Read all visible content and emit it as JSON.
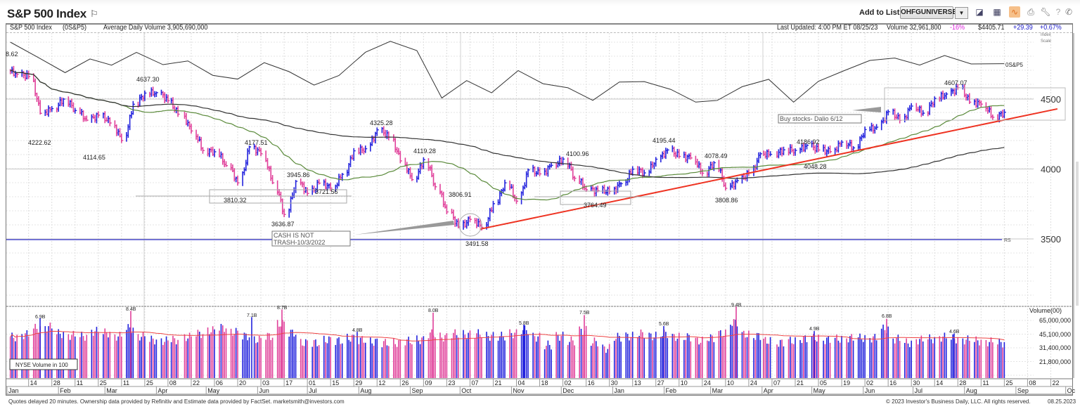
{
  "header": {
    "title": "S&P 500 Index",
    "add_to_list_label": "Add to List:",
    "list_selected": "OHFGUNIVERSE",
    "icons": [
      "chart-icon",
      "layout-grid-icon",
      "orange-chart-icon",
      "print-icon",
      "wrench-icon",
      "help-icon",
      "phone-icon"
    ]
  },
  "info": {
    "name": "S&P 500 Index",
    "symbol": "(0S&P5)",
    "avg_volume": "Average Daily Volume 3,905,690,000",
    "last_updated": "Last Updated: 4:00 PM ET 08/25/23",
    "volume": "Volume 32,961,800",
    "volume_change": "-16%",
    "price": "$4405.71",
    "change": "+29.39",
    "change_pct": "+0.67%",
    "index_scale_1": "Index",
    "index_scale_2": "Scale"
  },
  "colors": {
    "up": "#2222dd",
    "down": "#e0409a",
    "ma50": "#5a8a3a",
    "ma200": "#333333",
    "trend": "#ee3322",
    "rs": "#333333",
    "rs_baseline": "#3333cc",
    "vol_avg": "#ee4444",
    "neg": "#dd22dd",
    "pos": "#2222cc"
  },
  "chart_data": {
    "type": "ohlc",
    "y_axis": {
      "ticks": [
        4500,
        4000,
        3500
      ],
      "range": [
        3500,
        4700
      ]
    },
    "volume_axis": {
      "title": "Volume(00)",
      "ticks": [
        "65,000,000",
        "45,100,000",
        "31,400,000",
        "21,800,000"
      ],
      "scale": "log"
    },
    "rs_label": "0S&P5",
    "rs_baseline_label": "RS",
    "volume_legend": "NYSE Volume in 100",
    "weekly": {
      "dates": [
        "2022-01-07",
        "2022-01-14",
        "2022-01-21",
        "2022-01-28",
        "2022-02-04",
        "2022-02-11",
        "2022-02-18",
        "2022-02-25",
        "2022-03-04",
        "2022-03-11",
        "2022-03-18",
        "2022-03-25",
        "2022-04-01",
        "2022-04-08",
        "2022-04-14",
        "2022-04-22",
        "2022-04-29",
        "2022-05-06",
        "2022-05-13",
        "2022-05-20",
        "2022-05-27",
        "2022-06-03",
        "2022-06-10",
        "2022-06-17",
        "2022-06-24",
        "2022-07-01",
        "2022-07-08",
        "2022-07-15",
        "2022-07-22",
        "2022-07-29",
        "2022-08-05",
        "2022-08-12",
        "2022-08-19",
        "2022-08-26",
        "2022-09-02",
        "2022-09-09",
        "2022-09-16",
        "2022-09-23",
        "2022-09-30",
        "2022-10-07",
        "2022-10-14",
        "2022-10-21",
        "2022-10-28",
        "2022-11-04",
        "2022-11-11",
        "2022-11-18",
        "2022-11-25",
        "2022-12-02",
        "2022-12-09",
        "2022-12-16",
        "2022-12-23",
        "2022-12-30",
        "2023-01-06",
        "2023-01-13",
        "2023-01-20",
        "2023-01-27",
        "2023-02-03",
        "2023-02-10",
        "2023-02-17",
        "2023-02-24",
        "2023-03-03",
        "2023-03-10",
        "2023-03-17",
        "2023-03-24",
        "2023-03-31",
        "2023-04-06",
        "2023-04-14",
        "2023-04-21",
        "2023-04-28",
        "2023-05-05",
        "2023-05-12",
        "2023-05-19",
        "2023-05-26",
        "2023-06-02",
        "2023-06-09",
        "2023-06-16",
        "2023-06-23",
        "2023-06-30",
        "2023-07-07",
        "2023-07-14",
        "2023-07-21",
        "2023-07-28",
        "2023-08-04",
        "2023-08-11",
        "2023-08-18",
        "2023-08-25"
      ],
      "close": [
        4677,
        4662,
        4398,
        4432,
        4500,
        4418,
        4349,
        4385,
        4329,
        4204,
        4463,
        4543,
        4546,
        4488,
        4392,
        4272,
        4132,
        4123,
        4024,
        3901,
        4158,
        4109,
        3901,
        3675,
        3912,
        3825,
        3899,
        3863,
        3962,
        4130,
        4145,
        4280,
        4228,
        4058,
        3924,
        4067,
        3873,
        3693,
        3586,
        3640,
        3583,
        3752,
        3901,
        3770,
        3993,
        3965,
        4026,
        4071,
        3934,
        3852,
        3845,
        3840,
        3895,
        3999,
        3972,
        4070,
        4136,
        4090,
        4079,
        3970,
        4045,
        3862,
        3917,
        3971,
        4109,
        4105,
        4137,
        4133,
        4169,
        4136,
        4124,
        4192,
        4151,
        4282,
        4299,
        4410,
        4348,
        4450,
        4399,
        4505,
        4536,
        4582,
        4478,
        4464,
        4370,
        4406
      ],
      "volume_b": [
        4.2,
        4.5,
        5.3,
        5.5,
        4.6,
        4.4,
        4.3,
        4.9,
        4.7,
        4.3,
        5.3,
        4.3,
        3.9,
        3.8,
        3.9,
        4.2,
        4.6,
        5.0,
        5.4,
        4.8,
        4.3,
        3.9,
        4.3,
        6.0,
        4.7,
        3.6,
        3.6,
        3.9,
        3.8,
        4.1,
        3.9,
        3.7,
        3.6,
        3.6,
        3.8,
        3.9,
        4.6,
        4.2,
        4.6,
        4.5,
        4.6,
        4.3,
        4.3,
        4.6,
        5.1,
        4.2,
        3.4,
        4.3,
        3.8,
        5.0,
        3.7,
        3.1,
        4.2,
        4.3,
        4.6,
        4.3,
        4.6,
        4.2,
        4.2,
        3.8,
        4.1,
        4.6,
        6.2,
        4.5,
        4.3,
        3.8,
        3.6,
        3.8,
        4.0,
        4.1,
        3.9,
        4.0,
        4.1,
        4.1,
        4.1,
        5.2,
        4.0,
        3.6,
        3.9,
        4.0,
        4.2,
        4.0,
        3.9,
        3.8,
        3.7,
        3.6
      ]
    },
    "rs_line": {
      "dates": [
        "2022-01-03",
        "2022-01-20",
        "2022-02-05",
        "2022-02-20",
        "2022-03-05",
        "2022-03-20",
        "2022-04-05",
        "2022-04-20",
        "2022-05-05",
        "2022-05-20",
        "2022-06-05",
        "2022-06-20",
        "2022-07-05",
        "2022-07-20",
        "2022-08-05",
        "2022-08-20",
        "2022-09-05",
        "2022-09-20",
        "2022-10-05",
        "2022-10-20",
        "2022-11-05",
        "2022-11-20",
        "2022-12-05",
        "2022-12-20",
        "2023-01-05",
        "2023-01-20",
        "2023-02-05",
        "2023-02-20",
        "2023-03-05",
        "2023-03-20",
        "2023-04-05",
        "2023-04-20",
        "2023-05-05",
        "2023-05-20",
        "2023-06-05",
        "2023-06-20",
        "2023-07-05",
        "2023-07-20",
        "2023-08-05",
        "2023-08-25"
      ],
      "values": [
        140,
        115,
        95,
        118,
        110,
        125,
        105,
        112,
        95,
        90,
        110,
        95,
        78,
        95,
        128,
        140,
        125,
        60,
        88,
        70,
        98,
        78,
        75,
        60,
        85,
        82,
        70,
        55,
        60,
        78,
        85,
        52,
        85,
        102,
        115,
        115,
        105,
        122,
        112,
        110
      ]
    },
    "trendline": {
      "points": [
        [
          "2022-10-13",
          3570
        ],
        [
          "2023-09-26",
          4430
        ]
      ]
    },
    "price_labels": [
      "8.62",
      "4637.30",
      "4222.62",
      "4114.65",
      "4177.51",
      "3945.86",
      "3810.32",
      "3636.87",
      "3721.56",
      "4325.28",
      "4119.28",
      "3806.91",
      "3491.58",
      "4100.96",
      "3764.49",
      "4195.44",
      "4078.49",
      "3808.86",
      "4186.92",
      "4048.28",
      "4607.07"
    ],
    "volume_labels": [
      "6.9B",
      "8.4B",
      "7.1B",
      "8.7B",
      "4.8B",
      "8.0B",
      "5.8B",
      "7.5B",
      "5.6B",
      "9.4B",
      "4.9B",
      "6.8B",
      "4.6B"
    ],
    "annotations": {
      "cash_1": "CASH IS NOT",
      "cash_2": "TRASH-10/3/2022",
      "dalio": "Buy stocks- Dalio 6/12"
    },
    "date_ticks": [
      "2022-01-14",
      "2022-01-28",
      "2022-02-11",
      "2022-02-25",
      "2022-03-11",
      "2022-03-25",
      "2022-04-08",
      "2022-04-22",
      "2022-05-06",
      "2022-05-20",
      "2022-06-03",
      "2022-06-17",
      "2022-07-01",
      "2022-07-15",
      "2022-07-29",
      "2022-08-12",
      "2022-08-26",
      "2022-09-09",
      "2022-09-23",
      "2022-10-07",
      "2022-10-21",
      "2022-11-04",
      "2022-11-18",
      "2022-12-02",
      "2022-12-16",
      "2022-12-30",
      "2023-01-13",
      "2023-01-27",
      "2023-02-10",
      "2023-02-24",
      "2023-03-10",
      "2023-03-24",
      "2023-04-07",
      "2023-04-21",
      "2023-05-05",
      "2023-05-19",
      "2023-06-02",
      "2023-06-16",
      "2023-06-30",
      "2023-07-14",
      "2023-07-28",
      "2023-08-11",
      "2023-08-25",
      "2023-09-08",
      "2023-09-22"
    ],
    "months": [
      [
        "2022-01-01",
        "Jan"
      ],
      [
        "2022-02-01",
        "Feb"
      ],
      [
        "2022-03-01",
        "Mar"
      ],
      [
        "2022-04-01",
        "Apr"
      ],
      [
        "2022-05-01",
        "May"
      ],
      [
        "2022-06-01",
        "Jun"
      ],
      [
        "2022-07-01",
        "Jul"
      ],
      [
        "2022-08-01",
        "Aug"
      ],
      [
        "2022-09-01",
        "Sep"
      ],
      [
        "2022-10-01",
        "Oct"
      ],
      [
        "2022-11-01",
        "Nov"
      ],
      [
        "2022-12-01",
        "Dec"
      ],
      [
        "2023-01-01",
        "Jan"
      ],
      [
        "2023-02-01",
        "Feb"
      ],
      [
        "2023-03-01",
        "Mar"
      ],
      [
        "2023-04-01",
        "Apr"
      ],
      [
        "2023-05-01",
        "May"
      ],
      [
        "2023-06-01",
        "Jun"
      ],
      [
        "2023-07-01",
        "Jul"
      ],
      [
        "2023-08-01",
        "Aug"
      ],
      [
        "2023-09-01",
        "Sep"
      ],
      [
        "2023-10-01",
        "Oc"
      ]
    ]
  },
  "footer": {
    "left": "Quotes delayed 20 minutes. Ownership data provided by Refinitiv and Estimate data provided by FactSet. marketsmith@investors.com",
    "right": "© 2023 Investor's Business Daily, LLC. All rights reserved.",
    "date": "08.25.2023"
  }
}
